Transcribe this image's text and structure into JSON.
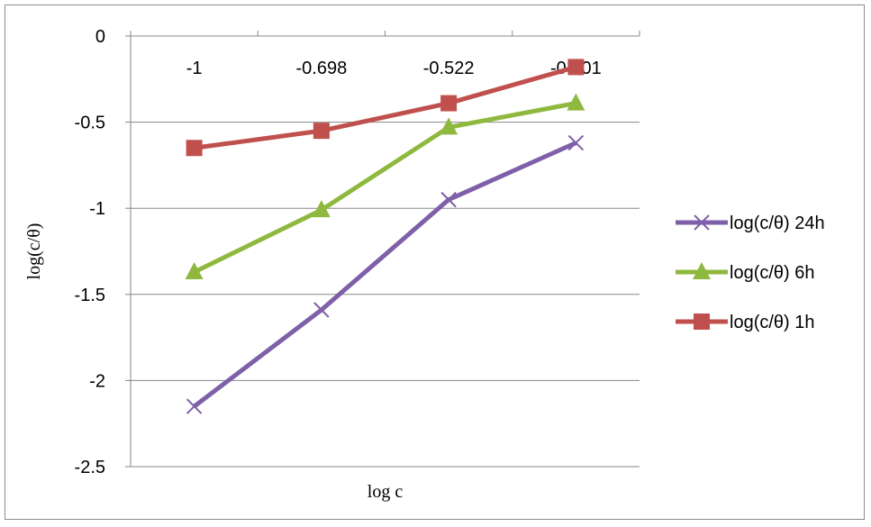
{
  "chart_data": {
    "type": "line",
    "title": "",
    "xlabel": "log c",
    "ylabel": "log(c/θ)",
    "x": [
      -1,
      -0.698,
      -0.522,
      -0.301
    ],
    "x_tick_labels": [
      "-1",
      "-0.698",
      "-0.522",
      "-0.301"
    ],
    "y_tick_labels": [
      "0",
      "-0.5",
      "-1",
      "-1.5",
      "-2",
      "-2.5"
    ],
    "ylim": [
      -2.5,
      0
    ],
    "grid": "horizontal",
    "legend_position": "right",
    "series": [
      {
        "name": "log(c/θ) 24h",
        "values": [
          -2.15,
          -1.59,
          -0.95,
          -0.62
        ],
        "color": "#7f60a8",
        "marker": "x"
      },
      {
        "name": "log(c/θ) 6h",
        "values": [
          -1.37,
          -1.01,
          -0.53,
          -0.39
        ],
        "color": "#8fb83f",
        "marker": "triangle"
      },
      {
        "name": "log(c/θ) 1h",
        "values": [
          -0.65,
          -0.55,
          -0.39,
          -0.18
        ],
        "color": "#c0504d",
        "marker": "square"
      }
    ]
  }
}
